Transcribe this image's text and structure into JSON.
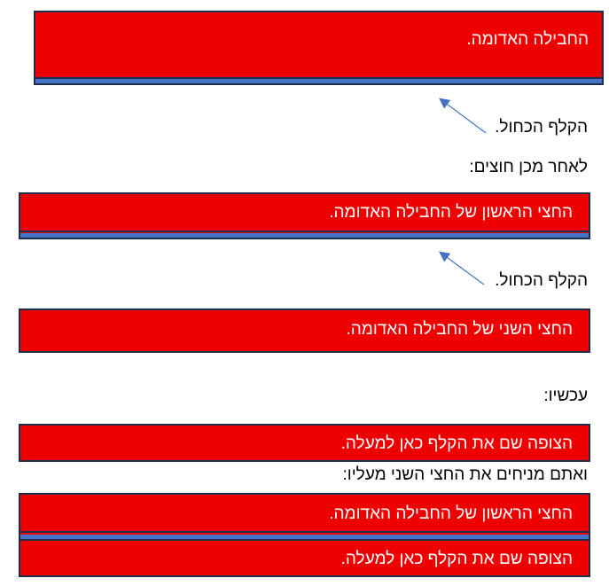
{
  "strip1": {
    "text": "החבילה האדומה.",
    "red": "#ee0000",
    "blue": "#4472c4"
  },
  "arrow_label_1": "הקלף הכחול.",
  "line_then": "לאחר מכן חוצים:",
  "strip2": {
    "text": "החצי הראשון של החבילה האדומה."
  },
  "arrow_label_2": "הקלף הכחול.",
  "strip3": {
    "text": "החצי השני של החבילה האדומה."
  },
  "line_now": "עכשיו:",
  "strip4": {
    "text": "הצופה שם את הקלף כאן למעלה."
  },
  "line_place": "ואתם מניחים את החצי השני מעליו:",
  "strip5": {
    "top_text": "החצי הראשון של החבילה האדומה.",
    "bottom_text": "הצופה שם את הקלף כאן למעלה."
  }
}
